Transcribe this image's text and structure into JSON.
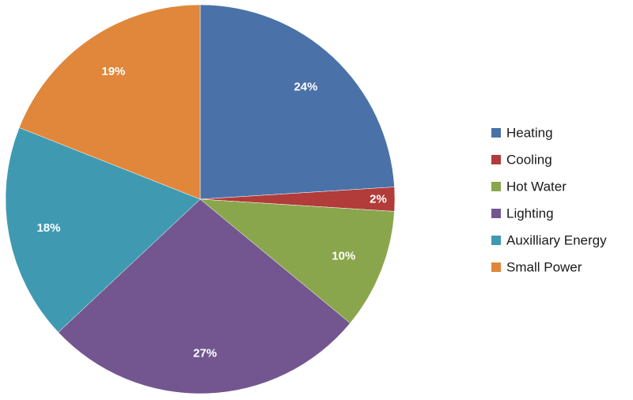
{
  "chart_data": {
    "type": "pie",
    "title": "",
    "start_angle": "12 o'clock",
    "direction": "clockwise",
    "legend_position": "right",
    "categories": [
      "Heating",
      "Cooling",
      "Hot Water",
      "Lighting",
      "Auxilliary Energy",
      "Small Power"
    ],
    "values": [
      24,
      2,
      10,
      27,
      18,
      19
    ],
    "labels": [
      "24%",
      "2%",
      "10%",
      "27%",
      "18%",
      "19%"
    ],
    "colors": [
      "#4a72a8",
      "#b13c3a",
      "#8aa64c",
      "#735690",
      "#3f9ab1",
      "#e0873b"
    ]
  }
}
